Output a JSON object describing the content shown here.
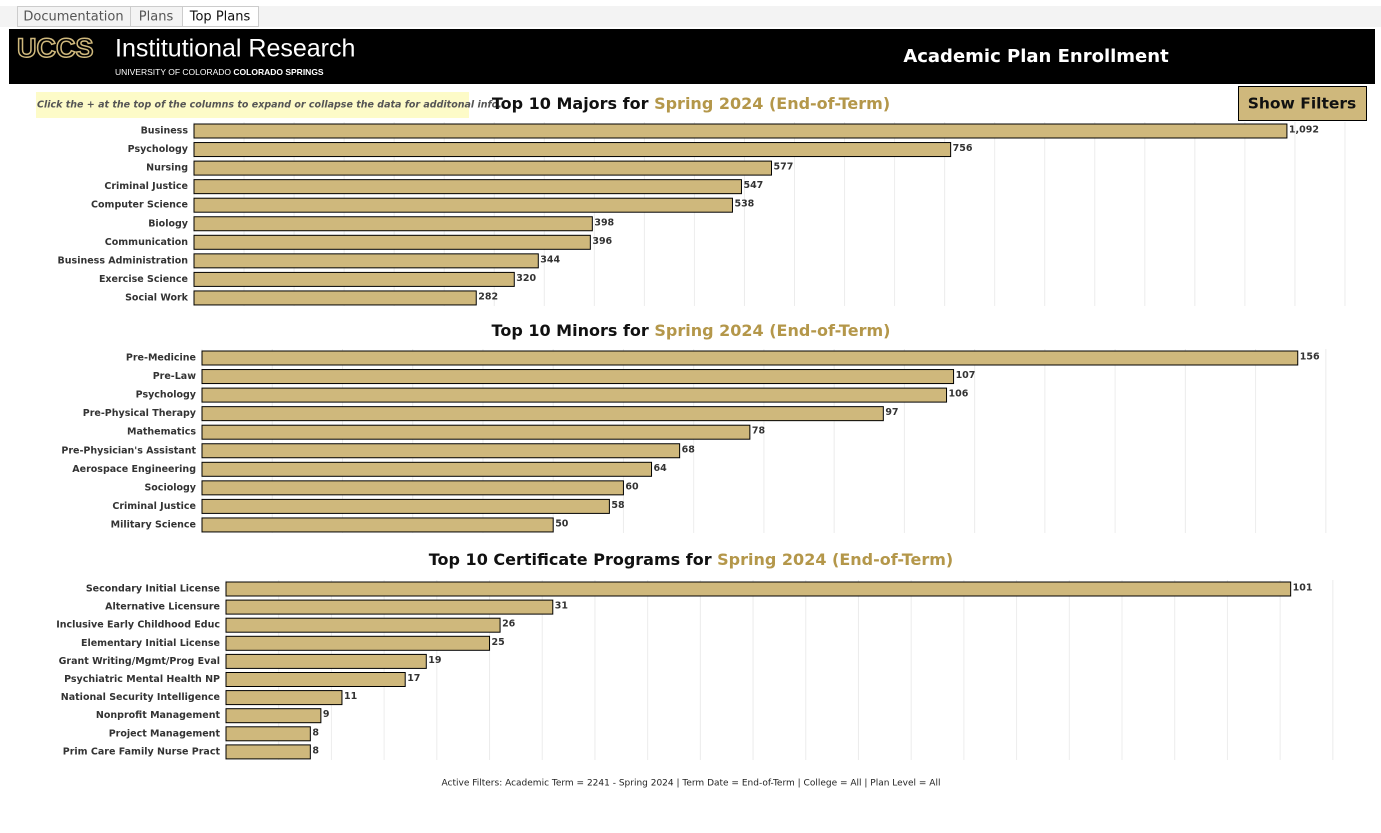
{
  "tabs": [
    "Documentation",
    "Plans",
    "Top Plans"
  ],
  "header": {
    "logo": "UCCS",
    "unit": "Institutional Research",
    "university": "UNIVERSITY OF COLORADO",
    "campus": "COLORADO SPRINGS",
    "title": "Academic Plan Enrollment"
  },
  "note": "Click the + at the top of the columns to expand or collapse the data for additonal info.",
  "button": "Show Filters",
  "footer": "Active Filters: Academic Term = 2241 - Spring 2024 | Term Date = End-of-Term | College = All | Plan Level = All",
  "chart_data": [
    {
      "type": "bar",
      "title": "Top 10 Majors for",
      "term": "Spring 2024 (End-of-Term)",
      "categories": [
        "Business",
        "Psychology",
        "Nursing",
        "Criminal Justice",
        "Computer Science",
        "Biology",
        "Communication",
        "Business Administration",
        "Exercise Science",
        "Social Work"
      ],
      "values": [
        1092,
        756,
        577,
        547,
        538,
        398,
        396,
        344,
        320,
        282
      ],
      "value_labels": [
        "1,092",
        "756",
        "577",
        "547",
        "538",
        "398",
        "396",
        "344",
        "320",
        "282"
      ],
      "color": "#cfb87c",
      "xlim": [
        0,
        1180
      ],
      "xticks": [
        0,
        50,
        100,
        150,
        200,
        250,
        300,
        350,
        400,
        450,
        500,
        550,
        600,
        650,
        700,
        750,
        800,
        850,
        900,
        950,
        1000,
        1050,
        1100,
        1150
      ],
      "grid": true
    },
    {
      "type": "bar",
      "title": "Top 10 Minors for",
      "term": "Spring 2024 (End-of-Term)",
      "categories": [
        "Pre-Medicine",
        "Pre-Law",
        "Psychology",
        "Pre-Physical Therapy",
        "Mathematics",
        "Pre-Physician's Assistant",
        "Aerospace Engineering",
        "Sociology",
        "Criminal Justice",
        "Military Science"
      ],
      "values": [
        156,
        107,
        106,
        97,
        78,
        68,
        64,
        60,
        58,
        50
      ],
      "color": "#cfb87c",
      "xlim": [
        0,
        167
      ],
      "xticks": [
        0,
        10,
        20,
        30,
        40,
        50,
        60,
        70,
        80,
        90,
        100,
        110,
        120,
        130,
        140,
        150,
        160
      ],
      "grid": true
    },
    {
      "type": "bar",
      "title": "Top 10 Certificate Programs for",
      "term": "Spring 2024 (End-of-Term)",
      "categories": [
        "Secondary Initial License",
        "Alternative Licensure",
        "Inclusive Early Childhood Educ",
        "Elementary Initial License",
        "Grant Writing/Mgmt/Prog Eval",
        "Psychiatric Mental Health NP",
        "National Security Intelligence",
        "Nonprofit Management",
        "Project Management",
        "Prim Care Family Nurse Pract"
      ],
      "values": [
        101,
        31,
        26,
        25,
        19,
        17,
        11,
        9,
        8,
        8
      ],
      "color": "#cfb87c",
      "xlim": [
        0,
        109
      ],
      "xticks": [
        0,
        5,
        10,
        15,
        20,
        25,
        30,
        35,
        40,
        45,
        50,
        55,
        60,
        65,
        70,
        75,
        80,
        85,
        90,
        95,
        100,
        105
      ],
      "grid": true
    }
  ]
}
